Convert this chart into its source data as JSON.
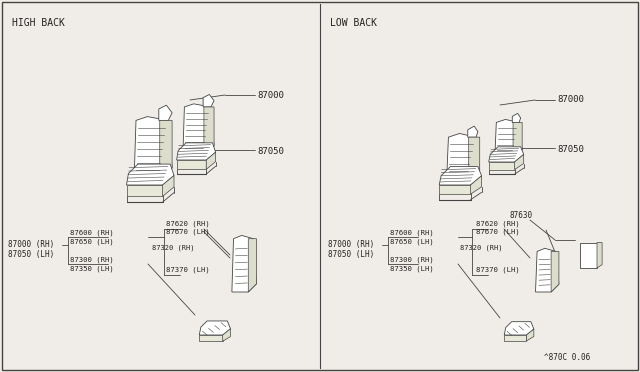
{
  "bg_color": "#f0ede8",
  "line_color": "#444444",
  "text_color": "#222222",
  "section_left": "HIGH BACK",
  "section_right": "LOW BACK",
  "footer": "^870C 0.06",
  "figsize": [
    6.4,
    3.72
  ],
  "dpi": 100
}
